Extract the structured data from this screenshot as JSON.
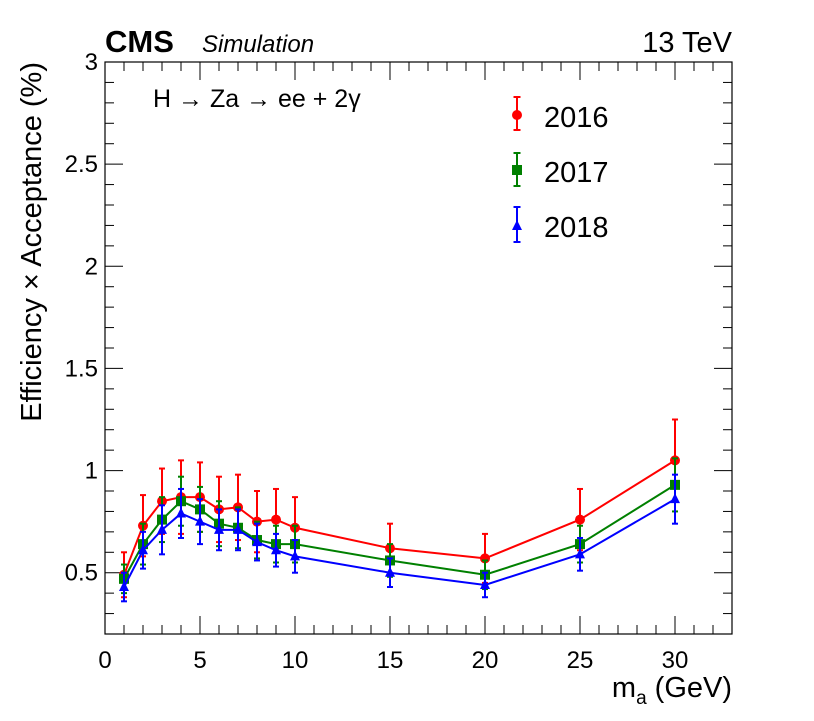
{
  "header": {
    "experiment": "CMS",
    "label": "Simulation",
    "energy": "13 TeV"
  },
  "chart_data": {
    "type": "line",
    "title": "",
    "process_label": "H → Za → ee + 2γ",
    "xlabel": "m",
    "xlabel_sub": "a",
    "xlabel_units": "(GeV)",
    "ylabel": "Efficiency × Acceptance (%)",
    "xlim": [
      0,
      33
    ],
    "ylim": [
      0.2,
      3.0
    ],
    "x_ticks": [
      0,
      5,
      10,
      15,
      20,
      25,
      30
    ],
    "y_ticks": [
      0.5,
      1,
      1.5,
      2,
      2.5,
      3
    ],
    "x_tick_labels": [
      "0",
      "5",
      "10",
      "15",
      "20",
      "25",
      "30"
    ],
    "y_tick_labels": [
      "0.5",
      "1",
      "1.5",
      "2",
      "2.5",
      "3"
    ],
    "x": [
      1,
      2,
      3,
      4,
      5,
      6,
      7,
      8,
      9,
      10,
      15,
      20,
      25,
      30
    ],
    "legend_position": "top-right",
    "series": [
      {
        "name": "2016",
        "color": "#ff0000",
        "marker": "circle",
        "values": [
          0.49,
          0.73,
          0.85,
          0.87,
          0.87,
          0.81,
          0.82,
          0.75,
          0.76,
          0.72,
          0.62,
          0.57,
          0.76,
          1.05
        ],
        "errors": [
          0.11,
          0.15,
          0.16,
          0.18,
          0.17,
          0.16,
          0.16,
          0.15,
          0.15,
          0.15,
          0.12,
          0.12,
          0.15,
          0.2
        ]
      },
      {
        "name": "2017",
        "color": "#008000",
        "marker": "square",
        "values": [
          0.47,
          0.64,
          0.76,
          0.85,
          0.81,
          0.74,
          0.72,
          0.66,
          0.64,
          0.64,
          0.56,
          0.49,
          0.64,
          0.93
        ],
        "errors": [
          0.07,
          0.1,
          0.11,
          0.12,
          0.11,
          0.11,
          0.1,
          0.09,
          0.09,
          0.09,
          0.08,
          0.07,
          0.09,
          0.13
        ]
      },
      {
        "name": "2018",
        "color": "#0000ff",
        "marker": "triangle",
        "values": [
          0.43,
          0.61,
          0.71,
          0.79,
          0.75,
          0.71,
          0.71,
          0.65,
          0.61,
          0.58,
          0.5,
          0.44,
          0.59,
          0.86
        ],
        "errors": [
          0.07,
          0.09,
          0.12,
          0.12,
          0.11,
          0.1,
          0.1,
          0.09,
          0.08,
          0.08,
          0.07,
          0.06,
          0.08,
          0.12
        ]
      }
    ]
  }
}
